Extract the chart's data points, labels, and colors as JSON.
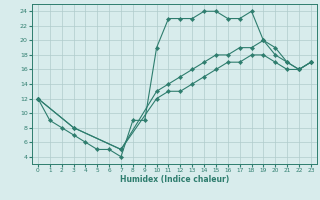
{
  "xlabel": "Humidex (Indice chaleur)",
  "xlim": [
    -0.5,
    23.5
  ],
  "ylim": [
    3,
    25
  ],
  "yticks": [
    4,
    6,
    8,
    10,
    12,
    14,
    16,
    18,
    20,
    22,
    24
  ],
  "xticks": [
    0,
    1,
    2,
    3,
    4,
    5,
    6,
    7,
    8,
    9,
    10,
    11,
    12,
    13,
    14,
    15,
    16,
    17,
    18,
    19,
    20,
    21,
    22,
    23
  ],
  "bg_color": "#d8ecec",
  "grid_color": "#b0cccc",
  "line_color": "#2e7d6e",
  "line1_x": [
    0,
    1,
    2,
    3,
    4,
    5,
    6,
    7,
    8,
    9,
    10,
    11,
    12,
    13,
    14,
    15,
    16,
    17,
    18,
    19,
    20,
    21,
    22,
    23
  ],
  "line1_y": [
    12,
    9,
    8,
    7,
    6,
    5,
    5,
    4,
    9,
    9,
    19,
    23,
    23,
    23,
    24,
    24,
    23,
    23,
    24,
    20,
    18,
    17,
    16,
    17
  ],
  "line2_x": [
    0,
    3,
    7,
    10,
    11,
    12,
    13,
    14,
    15,
    16,
    17,
    18,
    19,
    20,
    21,
    22,
    23
  ],
  "line2_y": [
    12,
    8,
    5,
    13,
    14,
    15,
    16,
    17,
    18,
    18,
    19,
    19,
    20,
    19,
    17,
    16,
    17
  ],
  "line3_x": [
    0,
    3,
    7,
    10,
    11,
    12,
    13,
    14,
    15,
    16,
    17,
    18,
    19,
    20,
    21,
    22,
    23
  ],
  "line3_y": [
    12,
    8,
    5,
    12,
    13,
    13,
    14,
    15,
    16,
    17,
    17,
    18,
    18,
    17,
    16,
    16,
    17
  ]
}
